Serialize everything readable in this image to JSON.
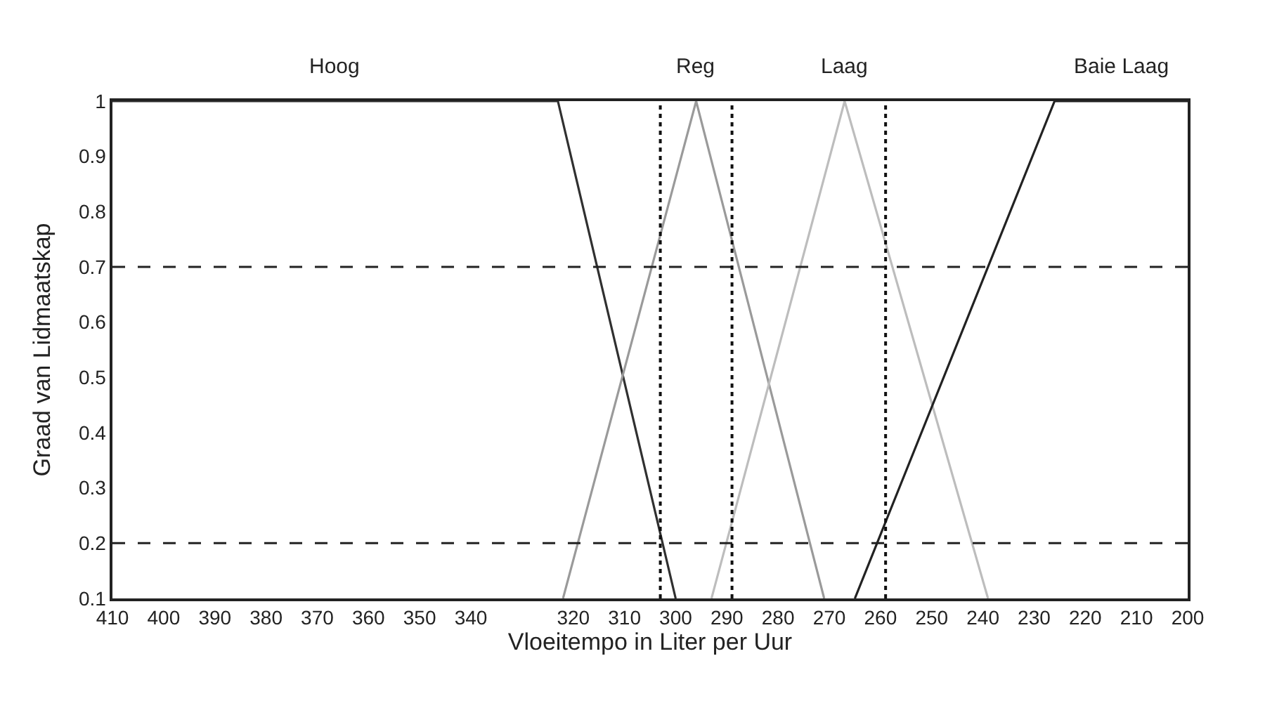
{
  "chart_data": {
    "type": "line",
    "xlabel": "Vloeitempo in Liter per Uur",
    "ylabel": "Graad van Lidmaatskap",
    "xlim": [
      410,
      200
    ],
    "xticks": [
      410,
      400,
      390,
      380,
      370,
      360,
      350,
      340,
      320,
      310,
      300,
      290,
      280,
      270,
      260,
      250,
      240,
      230,
      220,
      210,
      200
    ],
    "ylim": [
      0.1,
      1
    ],
    "yticks": [
      0.1,
      0.2,
      0.3,
      0.4,
      0.5,
      0.6,
      0.7,
      0.8,
      0.9,
      1
    ],
    "grid": false,
    "legend": false,
    "marker": "none",
    "line_style": "solid",
    "series": [
      {
        "name": "Hoog",
        "color": "#303030",
        "x": [
          410,
          323,
          300
        ],
        "values": [
          1,
          1,
          0.1
        ]
      },
      {
        "name": "Reg",
        "color": "#9a9a9a",
        "x": [
          322,
          296,
          271
        ],
        "values": [
          0.1,
          1,
          0.1
        ]
      },
      {
        "name": "Laag",
        "color": "#bdbdbd",
        "x": [
          293,
          267,
          239
        ],
        "values": [
          0.1,
          1,
          0.1
        ]
      },
      {
        "name": "Baie Laag",
        "color": "#222222",
        "x": [
          265,
          226,
          200
        ],
        "values": [
          0.1,
          1,
          1
        ]
      }
    ],
    "ref_lines": [
      {
        "axis": "y",
        "value": 0.7,
        "line_style": "dashed",
        "color": "#222222"
      },
      {
        "axis": "y",
        "value": 0.2,
        "line_style": "dashed",
        "color": "#222222"
      },
      {
        "axis": "x",
        "value": 303,
        "line_style": "dotted",
        "color": "#111111"
      },
      {
        "axis": "x",
        "value": 289,
        "line_style": "dotted",
        "color": "#111111"
      },
      {
        "axis": "x",
        "value": 259,
        "line_style": "dotted",
        "color": "#111111"
      }
    ]
  }
}
